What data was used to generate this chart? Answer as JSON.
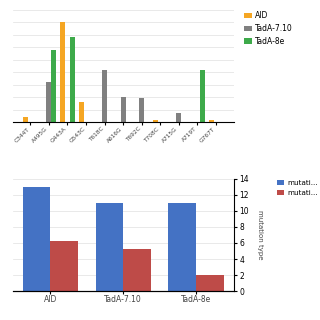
{
  "top": {
    "categories": [
      "C344T",
      "A495G",
      "G443A",
      "G543C",
      "T618C",
      "A616G",
      "T692C",
      "T708C",
      "A715G",
      "A719T",
      "G767T"
    ],
    "AID": [
      0.4,
      0.0,
      8.0,
      1.6,
      0.0,
      0.0,
      0.0,
      0.2,
      0.0,
      0.0,
      0.2
    ],
    "TadA_710": [
      0.0,
      3.2,
      0.0,
      0.0,
      4.2,
      2.0,
      1.9,
      0.0,
      0.7,
      0.0,
      0.0
    ],
    "TadA_8e": [
      0.0,
      5.8,
      6.8,
      0.0,
      0.0,
      0.0,
      0.0,
      0.0,
      0.0,
      4.2,
      0.0
    ],
    "colors": {
      "AID": "#F5A623",
      "TadA_710": "#808080",
      "TadA_8e": "#3DAA4A"
    },
    "ylim": [
      0,
      9.0
    ]
  },
  "bottom": {
    "groups": [
      "AID",
      "TadA-7.10",
      "TadA-8e"
    ],
    "blue_values": [
      13,
      11,
      11
    ],
    "red_values": [
      6.2,
      5.2,
      2.0
    ],
    "colors": {
      "blue": "#4472C4",
      "red": "#BE4B48"
    },
    "ylim": [
      0,
      14
    ],
    "yticks": [
      0,
      2,
      4,
      6,
      8,
      10,
      12,
      14
    ],
    "legend_labels": [
      "mutati...",
      "mutati..."
    ]
  },
  "legend_top": {
    "labels": [
      "AID",
      "TadA-7.10",
      "TadA-8e"
    ],
    "colors": [
      "#F5A623",
      "#808080",
      "#3DAA4A"
    ]
  }
}
